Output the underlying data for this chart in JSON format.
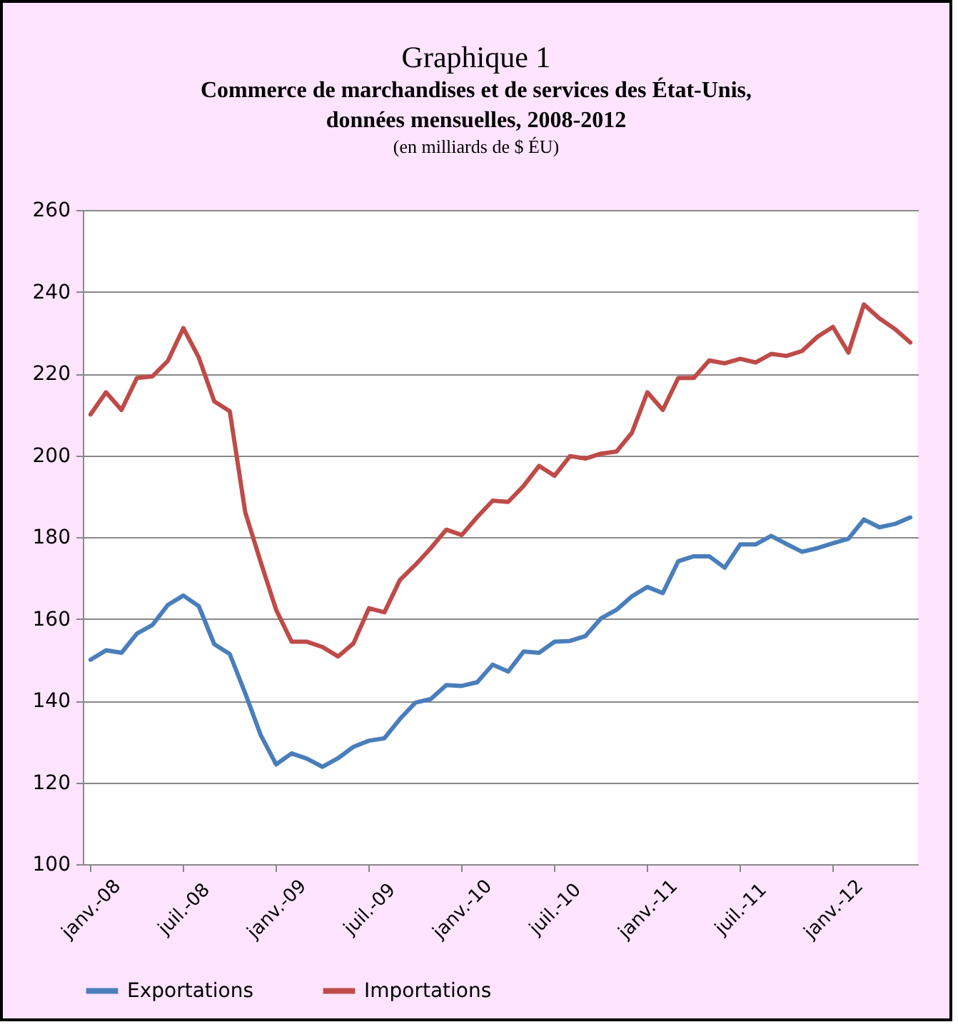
{
  "chart_data": {
    "type": "line",
    "title": "Graphique 1",
    "subtitle": "Commerce de marchandises et de services des État-Unis, données mensuelles, 2008-2012",
    "annotations": [
      "(en milliards de $ ÉU)"
    ],
    "categories": [
      "janv.-08",
      null,
      null,
      null,
      null,
      null,
      "juil.-08",
      null,
      null,
      null,
      null,
      null,
      "janv.-09",
      null,
      null,
      null,
      null,
      null,
      "juil.-09",
      null,
      null,
      null,
      null,
      null,
      "janv.-10",
      null,
      null,
      null,
      null,
      null,
      "juil.-10",
      null,
      null,
      null,
      null,
      null,
      "janv.-11",
      null,
      null,
      null,
      null,
      null,
      "juil.-11",
      null,
      null,
      null,
      null,
      null,
      "janv.-12",
      null,
      null,
      null,
      null,
      null
    ],
    "ylim": [
      100,
      260
    ],
    "yticks": [
      100,
      120,
      140,
      160,
      180,
      200,
      220,
      240,
      260
    ],
    "grid": "y",
    "legend": "bottom",
    "series": [
      {
        "name": "Exportations",
        "color": "#4a7ebb",
        "values": [
          150,
          152.3,
          151.7,
          156.4,
          158.5,
          163.4,
          165.7,
          163.1,
          153.8,
          151.4,
          141.8,
          131.6,
          124.4,
          127.1,
          125.8,
          123.8,
          125.9,
          128.7,
          130.2,
          130.8,
          135.5,
          139.5,
          140.4,
          143.8,
          143.6,
          144.5,
          148.8,
          147.1,
          152,
          151.7,
          154.4,
          154.6,
          155.8,
          160.1,
          162.2,
          165.5,
          167.8,
          166.3,
          174.1,
          175.3,
          175.3,
          172.5,
          178.2,
          178.2,
          180.3,
          178.3,
          176.4,
          177.3,
          178.5,
          179.6,
          184.3,
          182.4,
          183.2,
          184.8
        ]
      },
      {
        "name": "Importations",
        "color": "#be4b48",
        "values": [
          210,
          215.4,
          211.1,
          218.9,
          219.3,
          223.1,
          231.1,
          223.9,
          213.2,
          210.8,
          186.1,
          173.9,
          162.2,
          154.4,
          154.4,
          153.1,
          150.8,
          154,
          162.6,
          161.6,
          169.5,
          173.2,
          177.3,
          181.8,
          180.5,
          184.9,
          188.9,
          188.6,
          192.5,
          197.4,
          195,
          199.8,
          199.2,
          200.4,
          200.9,
          205.5,
          215.4,
          211.1,
          218.9,
          218.9,
          223.2,
          222.5,
          223.6,
          222.7,
          224.8,
          224.3,
          225.5,
          229,
          231.4,
          225.1,
          236.9,
          233.5,
          230.9,
          227.6
        ]
      }
    ]
  }
}
